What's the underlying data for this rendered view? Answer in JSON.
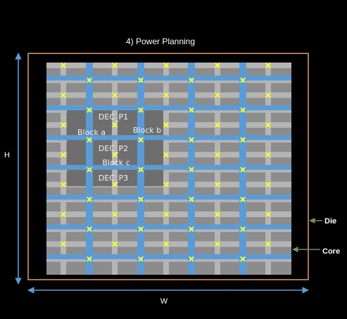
{
  "title": "4) Power Planning",
  "dimension_labels": {
    "height": "H",
    "width": "W"
  },
  "callouts": {
    "die": "Die",
    "core": "Core"
  },
  "blocks": {
    "dec_p1": "DEC_P1",
    "block_a": "Block a",
    "block_b": "Block b",
    "dec_p2": "DEC_P2",
    "block_c": "Block c",
    "dec_p3": "DEC_P3"
  },
  "colors": {
    "background": "#000000",
    "die_border": "#e39a6e",
    "core_fill": "#8c8c8c",
    "horizontal_rail": "#b5b5b5",
    "vertical_strap": "#5b9bd5",
    "blue_mesh_line": "#5b9bd5",
    "via_marker": "#ffff33",
    "macro_block": "#6e6e6e",
    "arrow": "#5b9bd5"
  },
  "icons": {
    "via": "yellow-x-mark",
    "arrow": "double-headed-arrow"
  }
}
